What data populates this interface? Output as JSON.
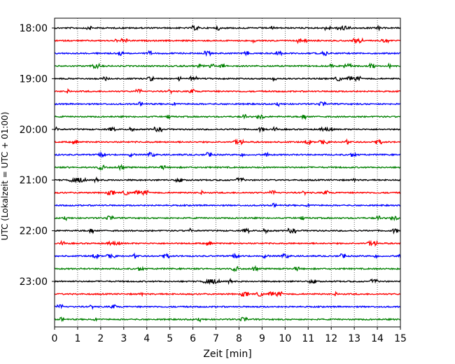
{
  "chart_data": {
    "type": "line",
    "title": "",
    "xlabel": "Zeit  [min]",
    "ylabel": "UTC (Lokalzeit = UTC + 01:00)",
    "xlim": [
      0,
      15
    ],
    "x_ticks": [
      "0",
      "1",
      "2",
      "3",
      "4",
      "5",
      "6",
      "7",
      "8",
      "9",
      "10",
      "11",
      "12",
      "13",
      "14",
      "15"
    ],
    "y_ticks": [
      "18:00",
      "19:00",
      "20:00",
      "21:00",
      "22:00",
      "23:00"
    ],
    "grid": "vertical dotted at each minute",
    "trace_colors": [
      "#000000",
      "#ff0000",
      "#0000ff",
      "#008000"
    ],
    "trace_start_times": [
      "18:00",
      "18:15",
      "18:30",
      "18:45",
      "19:00",
      "19:15",
      "19:30",
      "19:45",
      "20:00",
      "20:15",
      "20:30",
      "20:45",
      "21:00",
      "21:15",
      "21:30",
      "21:45",
      "22:00",
      "22:15",
      "22:30",
      "22:45",
      "23:00",
      "23:15",
      "23:30",
      "23:45"
    ],
    "trace_minutes_each": 15
  }
}
